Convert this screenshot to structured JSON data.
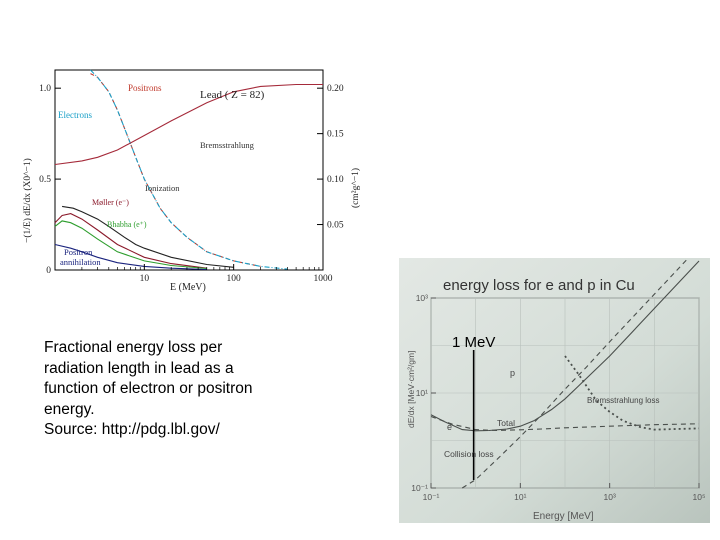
{
  "caption": {
    "lines": [
      "Fractional energy loss per",
      "radiation length in lead as a",
      "function of electron or positron",
      "energy.",
      "Source: http://pdg.lbl.gov/"
    ]
  },
  "colors": {
    "positrons": "#c0392b",
    "electrons": "#1aa0c8",
    "bremsstrahlung": "#a52a3a",
    "ionization": "#222222",
    "moller": "#8b1a2b",
    "bhabha": "#2e9e2e",
    "annihilation": "#1a237e",
    "photo_bg": "#d3dcd6"
  },
  "chart_data": [
    {
      "type": "line",
      "title": "Lead ( Z = 82)",
      "xlabel": "E (MeV)",
      "ylabel_left": "−(1/E) dE/dx (X0^−1)",
      "ylabel_right": "(cm²g^−1)",
      "xscale": "log",
      "xlim": [
        1,
        1000
      ],
      "ylim": [
        0,
        1.1
      ],
      "y2lim": [
        0,
        0.22
      ],
      "x_ticks": [
        {
          "value": 1,
          "label": ""
        },
        {
          "value": 10,
          "label": "10"
        },
        {
          "value": 100,
          "label": "100"
        },
        {
          "value": 1000,
          "label": "1000"
        }
      ],
      "y_ticks": [
        {
          "value": 0,
          "label": "0"
        },
        {
          "value": 0.5,
          "label": "0.5"
        },
        {
          "value": 1.0,
          "label": "1.0"
        }
      ],
      "y2_ticks": [
        {
          "value": 0.05,
          "label": "0.05"
        },
        {
          "value": 0.1,
          "label": "0.10"
        },
        {
          "value": 0.15,
          "label": "0.15"
        },
        {
          "value": 0.2,
          "label": "0.20"
        }
      ],
      "series": [
        {
          "name": "Positrons",
          "color_key": "positrons",
          "dash": "4,3",
          "x": [
            2.5,
            3,
            4,
            5,
            6,
            8,
            10,
            15,
            20,
            30,
            50,
            100,
            200
          ],
          "y": [
            1.08,
            1.06,
            0.98,
            0.88,
            0.78,
            0.62,
            0.5,
            0.34,
            0.26,
            0.18,
            0.1,
            0.05,
            0.02
          ]
        },
        {
          "name": "Electrons",
          "color_key": "electrons",
          "dash": "5,2,1,2",
          "x": [
            2.5,
            3,
            4,
            5,
            6,
            8,
            10,
            15,
            20,
            30,
            50,
            100,
            200,
            400
          ],
          "y": [
            1.1,
            1.06,
            0.98,
            0.88,
            0.78,
            0.62,
            0.5,
            0.34,
            0.26,
            0.18,
            0.1,
            0.05,
            0.02,
            0.005
          ]
        },
        {
          "name": "Bremsstrahlung",
          "color_key": "bremsstrahlung",
          "dash": "",
          "x": [
            1,
            2,
            3,
            5,
            10,
            20,
            50,
            100,
            200,
            500,
            1000
          ],
          "y": [
            0.58,
            0.6,
            0.62,
            0.66,
            0.74,
            0.82,
            0.92,
            0.98,
            1.01,
            1.02,
            1.02
          ]
        },
        {
          "name": "Ionization",
          "color_key": "ionization",
          "dash": "",
          "x": [
            1.2,
            1.6,
            2,
            3,
            4,
            6,
            8,
            10,
            20,
            50,
            100
          ],
          "y": [
            0.35,
            0.34,
            0.32,
            0.28,
            0.24,
            0.18,
            0.14,
            0.12,
            0.07,
            0.03,
            0.015
          ]
        },
        {
          "name": "Møller (e⁻)",
          "color_key": "moller",
          "dash": "",
          "x": [
            1,
            1.2,
            1.5,
            2,
            3,
            5,
            10,
            20,
            50
          ],
          "y": [
            0.26,
            0.3,
            0.31,
            0.28,
            0.22,
            0.14,
            0.07,
            0.035,
            0.01
          ]
        },
        {
          "name": "Bhabha (e⁺)",
          "color_key": "bhabha",
          "dash": "",
          "x": [
            1,
            1.2,
            1.5,
            2,
            3,
            5,
            10,
            20,
            50
          ],
          "y": [
            0.24,
            0.27,
            0.26,
            0.23,
            0.17,
            0.1,
            0.05,
            0.025,
            0.008
          ]
        },
        {
          "name": "Positron annihilation",
          "color_key": "annihilation",
          "dash": "",
          "x": [
            1,
            1.5,
            2,
            3,
            5,
            10,
            20,
            50
          ],
          "y": [
            0.14,
            0.12,
            0.1,
            0.07,
            0.04,
            0.02,
            0.01,
            0.003
          ]
        }
      ],
      "labels": {
        "positrons": "Positrons",
        "electrons": "Electrons",
        "bremsstrahlung": "Bremsstrahlung",
        "ionization": "Ionization",
        "moller": "Møller (e⁻)",
        "bhabha": "Bhabha (e⁺)",
        "annihilation_1": "Positron",
        "annihilation_2": "annihilation"
      }
    },
    {
      "type": "line",
      "title": "energy loss for e  and p in Cu",
      "xlabel": "Energy [MeV]",
      "ylabel": "dE/dx [MeV·cm²/gm]",
      "xscale": "log",
      "yscale": "log",
      "xlim": [
        0.1,
        100000
      ],
      "ylim": [
        0.1,
        1000
      ],
      "x_ticks": [
        {
          "value": 0.1,
          "label": "10⁻¹"
        },
        {
          "value": 10,
          "label": "10¹"
        },
        {
          "value": 1000,
          "label": "10³"
        },
        {
          "value": 100000,
          "label": "10⁵"
        }
      ],
      "y_ticks": [
        {
          "value": 0.1,
          "label": "10⁻¹"
        },
        {
          "value": 10,
          "label": "10¹"
        },
        {
          "value": 1000,
          "label": "10³"
        }
      ],
      "vline_value": 1,
      "series": [
        {
          "name": "Total",
          "dash": "",
          "x": [
            0.1,
            0.2,
            0.5,
            1,
            2,
            5,
            10,
            20,
            50,
            100,
            200,
            500,
            1000,
            5000,
            100000
          ],
          "y": [
            3.5,
            2.5,
            1.7,
            1.6,
            1.62,
            1.75,
            2.0,
            2.6,
            4.5,
            7.5,
            14,
            32,
            60,
            300,
            6000
          ]
        },
        {
          "name": "Bremsstrahlung loss",
          "dash": "5,4",
          "x": [
            0.5,
            1,
            3,
            10,
            30,
            100,
            300,
            1000,
            100000
          ],
          "y": [
            0.1,
            0.15,
            0.4,
            1.2,
            3.5,
            12,
            35,
            120,
            12000
          ]
        },
        {
          "name": "Collision loss",
          "dash": "5,4",
          "x": [
            0.1,
            0.3,
            1,
            3,
            10,
            30,
            100,
            1000,
            10000,
            100000
          ],
          "y": [
            3.2,
            2.2,
            1.7,
            1.62,
            1.68,
            1.75,
            1.85,
            2.0,
            2.15,
            2.25
          ]
        },
        {
          "name": "p",
          "dash": "2,3",
          "x": [
            100,
            200,
            500,
            1000,
            2000,
            5000,
            10000,
            100000
          ],
          "y": [
            60,
            25,
            7,
            4,
            2.6,
            1.9,
            1.7,
            1.8
          ]
        }
      ],
      "labels": {
        "vline": "1 MeV",
        "p": "p",
        "e": "e",
        "total": "Total",
        "brems": "Bremsstrahlung loss",
        "collision": "Collision loss"
      }
    }
  ]
}
